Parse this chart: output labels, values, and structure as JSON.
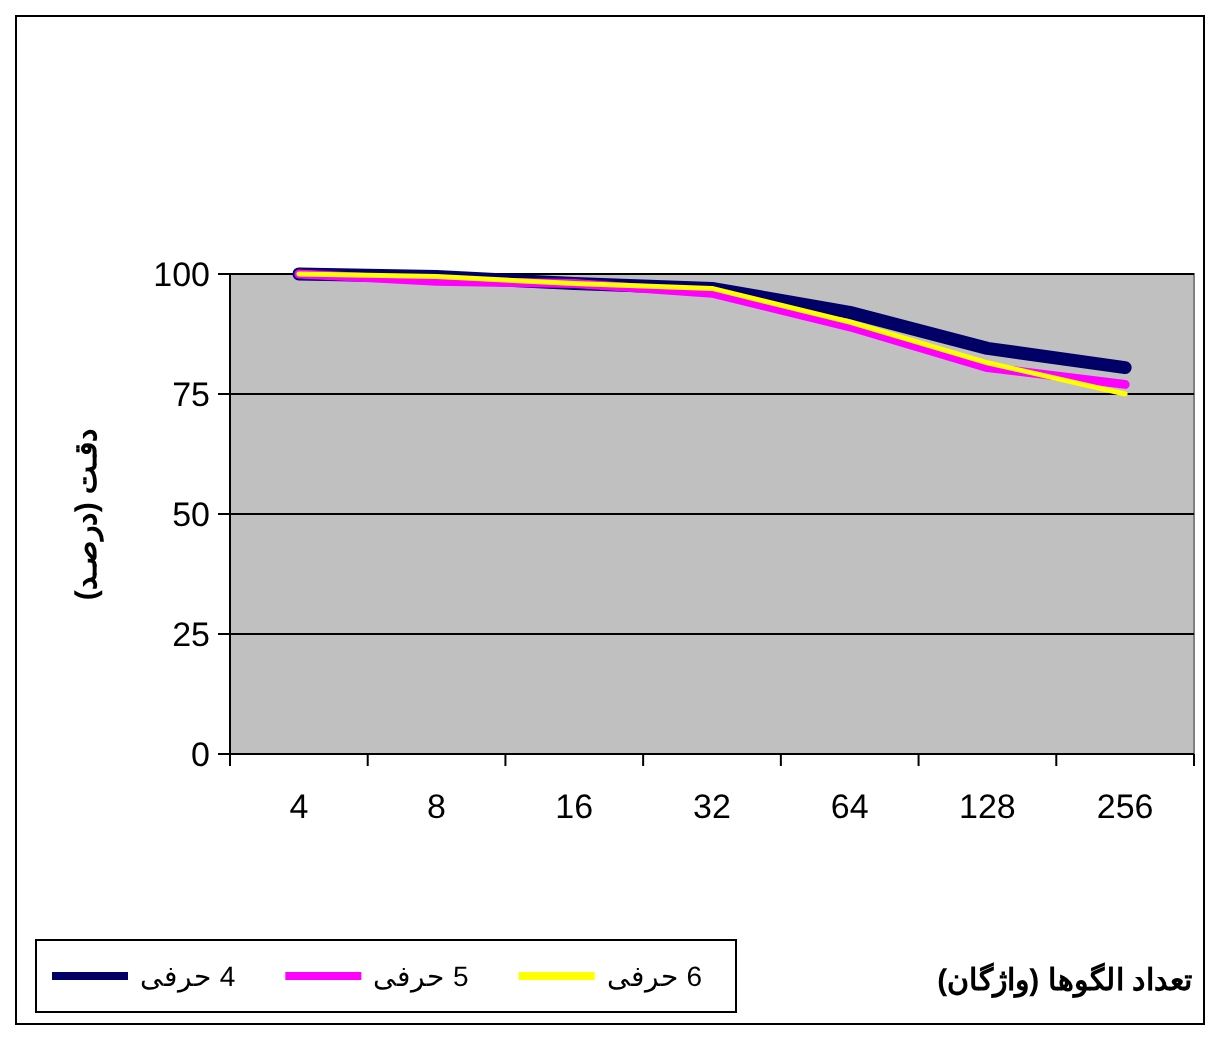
{
  "chart_data": {
    "type": "line",
    "xlabel": "تعداد الگوها (واژگان)",
    "ylabel": "دقـت (درصـد)",
    "categories": [
      "4",
      "8",
      "16",
      "32",
      "64",
      "128",
      "256"
    ],
    "series": [
      {
        "name": "4 حرفی",
        "color": "#000066",
        "values": [
          100,
          99.5,
          98,
          97,
          92,
          84.5,
          80.5
        ]
      },
      {
        "name": "5 حرفی",
        "color": "#ff00ff",
        "values": [
          100,
          98.5,
          98,
          96,
          89,
          80.5,
          77
        ]
      },
      {
        "name": "6 حرفی",
        "color": "#ffff00",
        "values": [
          100,
          99.5,
          98,
          97,
          90,
          81.5,
          75
        ]
      }
    ],
    "ylim": [
      0,
      100
    ],
    "yticks": [
      0,
      25,
      50,
      75,
      100
    ],
    "grid": "y",
    "legend": "bottom left",
    "line_style": "solid"
  }
}
